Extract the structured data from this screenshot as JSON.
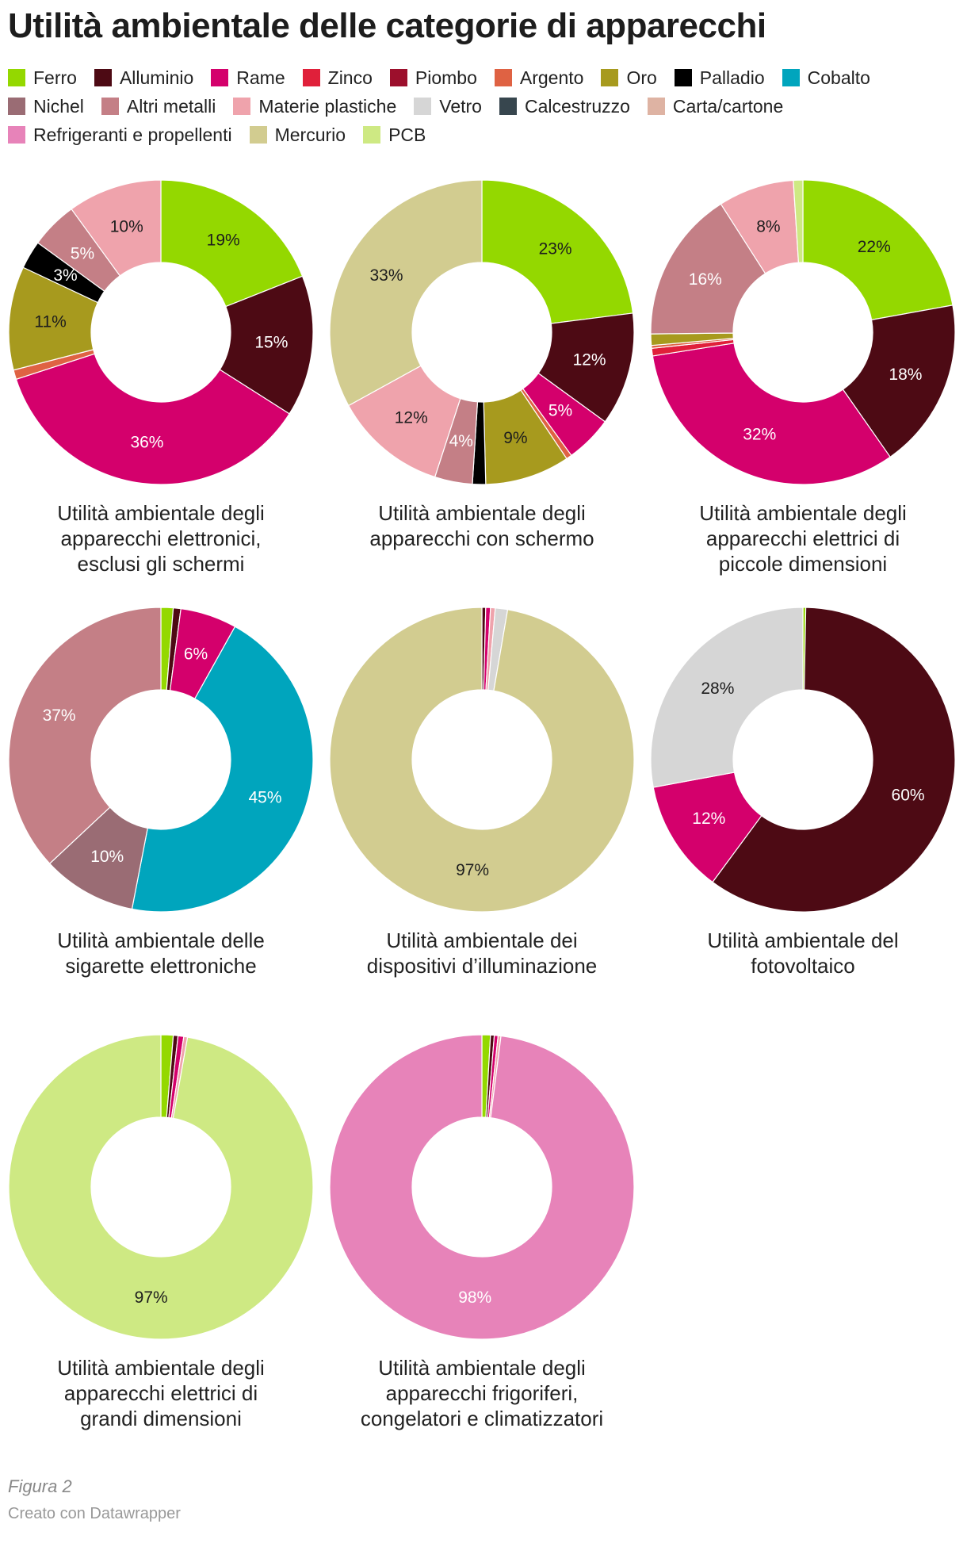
{
  "title": "Utilità ambientale delle categorie di apparecchi",
  "legend": [
    [
      {
        "name": "Ferro",
        "color": "#94d800"
      },
      {
        "name": "Alluminio",
        "color": "#4d0a14"
      },
      {
        "name": "Rame",
        "color": "#d4006c"
      },
      {
        "name": "Zinco",
        "color": "#e0203a"
      },
      {
        "name": "Piombo",
        "color": "#9c0f2c"
      },
      {
        "name": "Argento",
        "color": "#df6243"
      },
      {
        "name": "Oro",
        "color": "#a79a1e"
      },
      {
        "name": "Palladio",
        "color": "#000000"
      },
      {
        "name": "Cobalto",
        "color": "#00a5bd"
      }
    ],
    [
      {
        "name": "Nichel",
        "color": "#9a6c74"
      },
      {
        "name": "Altri metalli",
        "color": "#c47f86"
      },
      {
        "name": "Materie plastiche",
        "color": "#efa3ac"
      },
      {
        "name": "Vetro",
        "color": "#d6d6d6"
      },
      {
        "name": "Calcestruzzo",
        "color": "#37464e"
      },
      {
        "name": "Carta/cartone",
        "color": "#deb3a3"
      }
    ],
    [
      {
        "name": "Refrigeranti e propellenti",
        "color": "#e783b9"
      },
      {
        "name": "Mercurio",
        "color": "#d2cc90"
      },
      {
        "name": "PCB",
        "color": "#cee983"
      }
    ]
  ],
  "chart_data": [
    {
      "type": "pie",
      "title": "Utilità ambientale degli apparecchi elettronici, esclusi gli schermi",
      "title_lines": [
        "Utilità ambientale degli",
        "apparecchi elettronici,",
        "esclusi gli schermi"
      ],
      "slices": [
        {
          "name": "Ferro",
          "value": 19,
          "label": "19%"
        },
        {
          "name": "Alluminio",
          "value": 15,
          "label": "15%"
        },
        {
          "name": "Rame",
          "value": 36,
          "label": "36%"
        },
        {
          "name": "Argento",
          "value": 1,
          "label": ""
        },
        {
          "name": "Oro",
          "value": 11,
          "label": "11%"
        },
        {
          "name": "Palladio",
          "value": 3,
          "label": "3%"
        },
        {
          "name": "Altri metalli",
          "value": 5,
          "label": "5%"
        },
        {
          "name": "Materie plastiche",
          "value": 10,
          "label": "10%"
        }
      ]
    },
    {
      "type": "pie",
      "title": "Utilità ambientale degli apparecchi con schermo",
      "title_lines": [
        "Utilità ambientale degli",
        "apparecchi con schermo"
      ],
      "slices": [
        {
          "name": "Ferro",
          "value": 23,
          "label": "23%"
        },
        {
          "name": "Alluminio",
          "value": 12,
          "label": "12%"
        },
        {
          "name": "Rame",
          "value": 5,
          "label": "5%"
        },
        {
          "name": "Argento",
          "value": 0.6,
          "label": ""
        },
        {
          "name": "Oro",
          "value": 9,
          "label": "9%"
        },
        {
          "name": "Palladio",
          "value": 1.4,
          "label": ""
        },
        {
          "name": "Altri metalli",
          "value": 4,
          "label": "4%"
        },
        {
          "name": "Materie plastiche",
          "value": 12,
          "label": "12%"
        },
        {
          "name": "Mercurio",
          "value": 33,
          "label": "33%"
        }
      ]
    },
    {
      "type": "pie",
      "title": "Utilità ambientale degli apparecchi elettrici di piccole dimensioni",
      "title_lines": [
        "Utilità ambientale degli",
        "apparecchi elettrici di",
        "piccole dimensioni"
      ],
      "slices": [
        {
          "name": "Ferro",
          "value": 22,
          "label": "22%"
        },
        {
          "name": "Alluminio",
          "value": 18,
          "label": "18%"
        },
        {
          "name": "Rame",
          "value": 32,
          "label": "32%"
        },
        {
          "name": "Zinco",
          "value": 0.8,
          "label": ""
        },
        {
          "name": "Argento",
          "value": 0.3,
          "label": ""
        },
        {
          "name": "Oro",
          "value": 1.2,
          "label": ""
        },
        {
          "name": "Altri metalli",
          "value": 16,
          "label": "16%"
        },
        {
          "name": "Materie plastiche",
          "value": 8,
          "label": "8%"
        },
        {
          "name": "PCB",
          "value": 1,
          "label": ""
        }
      ]
    },
    {
      "type": "pie",
      "title": "Utilità ambientale delle sigarette elettroniche",
      "title_lines": [
        "Utilità ambientale delle",
        "sigarette elettroniche"
      ],
      "slices": [
        {
          "name": "Ferro",
          "value": 1.3,
          "label": ""
        },
        {
          "name": "Alluminio",
          "value": 0.8,
          "label": ""
        },
        {
          "name": "Rame",
          "value": 6,
          "label": "6%"
        },
        {
          "name": "Cobalto",
          "value": 45,
          "label": "45%"
        },
        {
          "name": "Nichel",
          "value": 10,
          "label": "10%"
        },
        {
          "name": "Altri metalli",
          "value": 37,
          "label": "37%"
        }
      ]
    },
    {
      "type": "pie",
      "title": "Utilità ambientale dei dispositivi d’illuminazione",
      "title_lines": [
        "Utilità ambientale dei",
        "dispositivi d’illuminazione"
      ],
      "slices": [
        {
          "name": "Alluminio",
          "value": 0.4,
          "label": ""
        },
        {
          "name": "Rame",
          "value": 0.5,
          "label": ""
        },
        {
          "name": "Materie plastiche",
          "value": 0.5,
          "label": ""
        },
        {
          "name": "Vetro",
          "value": 1.3,
          "label": ""
        },
        {
          "name": "Mercurio",
          "value": 97,
          "label": "97%"
        }
      ]
    },
    {
      "type": "pie",
      "title": "Utilità ambientale del fotovoltaico",
      "title_lines": [
        "Utilità ambientale del",
        "fotovoltaico"
      ],
      "slices": [
        {
          "name": "Ferro",
          "value": 0.3,
          "label": ""
        },
        {
          "name": "Alluminio",
          "value": 60,
          "label": "60%"
        },
        {
          "name": "Rame",
          "value": 12,
          "label": "12%"
        },
        {
          "name": "Vetro",
          "value": 28,
          "label": "28%"
        }
      ]
    },
    {
      "type": "pie",
      "title": "Utilità ambientale degli apparecchi elettrici di grandi dimensioni",
      "title_lines": [
        "Utilità ambientale degli",
        "apparecchi elettrici di",
        "grandi dimensioni"
      ],
      "slices": [
        {
          "name": "Ferro",
          "value": 1.3,
          "label": ""
        },
        {
          "name": "Alluminio",
          "value": 0.5,
          "label": ""
        },
        {
          "name": "Rame",
          "value": 0.6,
          "label": ""
        },
        {
          "name": "Materie plastiche",
          "value": 0.4,
          "label": ""
        },
        {
          "name": "PCB",
          "value": 97,
          "label": "97%"
        }
      ]
    },
    {
      "type": "pie",
      "title": "Utilità ambientale degli apparecchi frigoriferi, congelatori e climatizzatori",
      "title_lines": [
        "Utilità ambientale degli",
        "apparecchi frigoriferi,",
        "congelatori e climatizzatori"
      ],
      "slices": [
        {
          "name": "Ferro",
          "value": 0.9,
          "label": ""
        },
        {
          "name": "Alluminio",
          "value": 0.4,
          "label": ""
        },
        {
          "name": "Rame",
          "value": 0.4,
          "label": ""
        },
        {
          "name": "Materie plastiche",
          "value": 0.3,
          "label": ""
        },
        {
          "name": "Refrigeranti e propellenti",
          "value": 98,
          "label": "98%"
        }
      ]
    }
  ],
  "figure_label": "Figura 2",
  "credit": "Creato con Datawrapper"
}
